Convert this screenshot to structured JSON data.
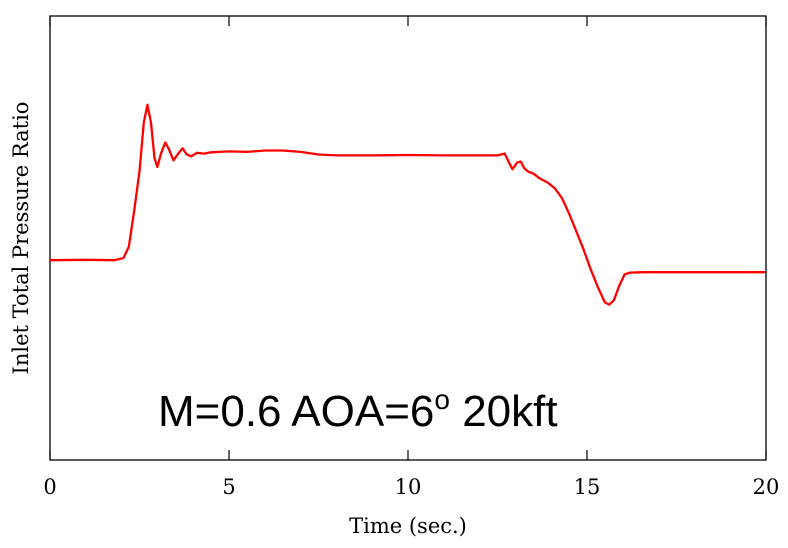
{
  "chart_data": {
    "type": "line",
    "title": "",
    "xlabel": "Time (sec.)",
    "ylabel": "Inlet Total Pressure Ratio",
    "xlim": [
      0,
      20
    ],
    "xticks": [
      "0",
      "5",
      "10",
      "15",
      "20"
    ],
    "yticks": [],
    "ylim": [
      0,
      1
    ],
    "grid": false,
    "annotation": {
      "text_main": "M=0.6 AOA=6",
      "text_sup": "o",
      "text_tail": " 20kft"
    },
    "series": [
      {
        "color": "#ff0000",
        "points": [
          [
            0.0,
            0.45
          ],
          [
            1.0,
            0.451
          ],
          [
            1.8,
            0.45
          ],
          [
            2.05,
            0.455
          ],
          [
            2.2,
            0.48
          ],
          [
            2.35,
            0.56
          ],
          [
            2.5,
            0.65
          ],
          [
            2.62,
            0.76
          ],
          [
            2.72,
            0.8
          ],
          [
            2.82,
            0.76
          ],
          [
            2.92,
            0.68
          ],
          [
            3.0,
            0.66
          ],
          [
            3.1,
            0.69
          ],
          [
            3.22,
            0.715
          ],
          [
            3.32,
            0.7
          ],
          [
            3.45,
            0.675
          ],
          [
            3.58,
            0.69
          ],
          [
            3.7,
            0.702
          ],
          [
            3.82,
            0.688
          ],
          [
            3.95,
            0.684
          ],
          [
            4.1,
            0.692
          ],
          [
            4.3,
            0.69
          ],
          [
            4.5,
            0.693
          ],
          [
            5.0,
            0.695
          ],
          [
            5.5,
            0.694
          ],
          [
            6.0,
            0.697
          ],
          [
            6.5,
            0.697
          ],
          [
            7.0,
            0.694
          ],
          [
            7.5,
            0.688
          ],
          [
            8.0,
            0.686
          ],
          [
            9.0,
            0.686
          ],
          [
            10.0,
            0.687
          ],
          [
            11.0,
            0.686
          ],
          [
            12.0,
            0.686
          ],
          [
            12.5,
            0.686
          ],
          [
            12.7,
            0.69
          ],
          [
            12.82,
            0.67
          ],
          [
            12.92,
            0.655
          ],
          [
            13.05,
            0.67
          ],
          [
            13.15,
            0.672
          ],
          [
            13.25,
            0.657
          ],
          [
            13.35,
            0.65
          ],
          [
            13.5,
            0.645
          ],
          [
            13.7,
            0.633
          ],
          [
            13.9,
            0.625
          ],
          [
            14.1,
            0.612
          ],
          [
            14.3,
            0.59
          ],
          [
            14.5,
            0.555
          ],
          [
            14.7,
            0.515
          ],
          [
            14.9,
            0.475
          ],
          [
            15.1,
            0.43
          ],
          [
            15.3,
            0.39
          ],
          [
            15.5,
            0.355
          ],
          [
            15.62,
            0.35
          ],
          [
            15.75,
            0.36
          ],
          [
            15.9,
            0.392
          ],
          [
            16.05,
            0.418
          ],
          [
            16.2,
            0.422
          ],
          [
            16.6,
            0.423
          ],
          [
            17.0,
            0.423
          ],
          [
            18.0,
            0.423
          ],
          [
            19.0,
            0.423
          ],
          [
            20.0,
            0.423
          ]
        ]
      }
    ]
  }
}
